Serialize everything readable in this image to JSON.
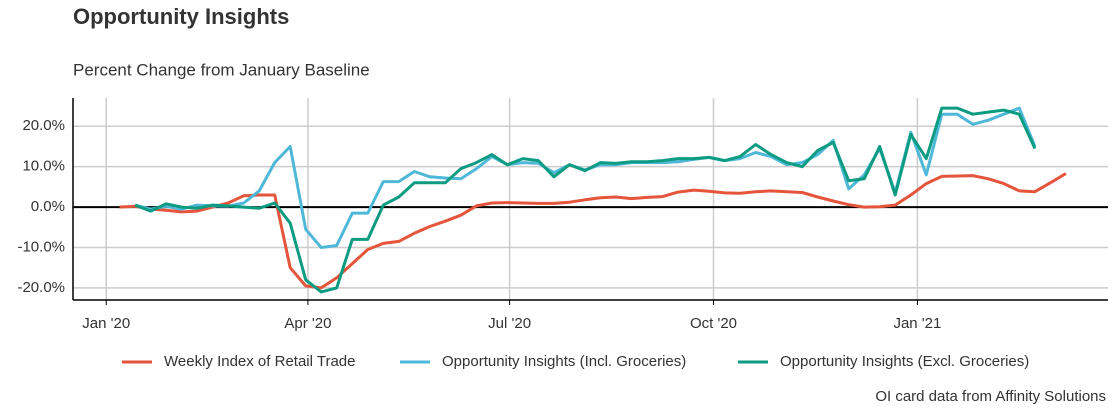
{
  "chart_data": {
    "type": "line",
    "title": "Opportunity Insights",
    "subtitle": "Percent Change from January Baseline",
    "caption": "OI card data from Affinity Solutions",
    "x": [
      6,
      13,
      20,
      27,
      34,
      41,
      48,
      55,
      62,
      69,
      76,
      83,
      90,
      97,
      104,
      111,
      118,
      125,
      132,
      139,
      146,
      153,
      160,
      167,
      174,
      181,
      188,
      195,
      202,
      209,
      216,
      223,
      230,
      237,
      244,
      251,
      258,
      265,
      272,
      279,
      286,
      293,
      300,
      307,
      314,
      321,
      328,
      335,
      342,
      349,
      356,
      363,
      370,
      377,
      384,
      391,
      398,
      405,
      412,
      419,
      426,
      433
    ],
    "xlim": [
      -15,
      452
    ],
    "xticks": [
      {
        "value": 0,
        "label": "Jan '20"
      },
      {
        "value": 91,
        "label": "Apr '20"
      },
      {
        "value": 182,
        "label": "Jul '20"
      },
      {
        "value": 274,
        "label": "Oct '20"
      },
      {
        "value": 366,
        "label": "Jan '21"
      }
    ],
    "ylim": [
      -23,
      27
    ],
    "yticks": [
      {
        "value": -20,
        "label": "-20.0%"
      },
      {
        "value": -10,
        "label": "-10.0%"
      },
      {
        "value": 0,
        "label": "0.0%"
      },
      {
        "value": 10,
        "label": "10.0%"
      },
      {
        "value": 20,
        "label": "20.0%"
      }
    ],
    "grid": true,
    "legend": "bottom",
    "series": [
      {
        "name": "Weekly Index of Retail Trade",
        "color": "#e4553b",
        "values": [
          0,
          0.2,
          -0.5,
          -0.8,
          -1.2,
          -1,
          0,
          1,
          2.8,
          3,
          3,
          -15,
          -19.5,
          -20,
          -17.5,
          -14,
          -10.5,
          -9,
          -8.5,
          -6.5,
          -4.8,
          -3.5,
          -2,
          0.3,
          1,
          1.1,
          1,
          0.9,
          0.9,
          1.2,
          1.8,
          2.3,
          2.5,
          2.1,
          2.4,
          2.6,
          3.7,
          4.2,
          3.9,
          3.5,
          3.4,
          3.8,
          4,
          3.8,
          3.6,
          2.5,
          1.5,
          0.6,
          0,
          0.1,
          0.5,
          3,
          5.8,
          7.6,
          7.7,
          7.8,
          7,
          5.8,
          4,
          3.8,
          6,
          8.3
        ]
      },
      {
        "name": "Opportunity Insights (Incl. Groceries)",
        "color": "#4fb8d8",
        "values": [
          null,
          0.5,
          -0.5,
          0.2,
          -0.5,
          0.5,
          0.3,
          0.2,
          1,
          4,
          11,
          15,
          -5.5,
          -10,
          -9.5,
          -1.5,
          -1.5,
          6.3,
          6.3,
          8.8,
          7.5,
          7.2,
          7,
          9.5,
          12.5,
          10.5,
          11,
          10.8,
          8.5,
          10.5,
          9.2,
          10.5,
          10.5,
          11,
          11,
          11,
          11.2,
          11.8,
          12.3,
          11.5,
          12,
          13.5,
          12.5,
          10.5,
          11,
          13,
          16.5,
          4.5,
          8,
          14.5,
          3.5,
          18.5,
          8,
          23,
          23,
          20.5,
          21.5,
          23,
          24.5,
          15,
          null,
          null
        ]
      },
      {
        "name": "Opportunity Insights (Excl. Groceries)",
        "color": "#0d9b82",
        "values": [
          null,
          0.5,
          -1,
          0.8,
          0,
          -0.3,
          0.5,
          0.3,
          0,
          -0.3,
          1,
          -4,
          -18,
          -21,
          -20,
          -8,
          -8,
          0.5,
          2.5,
          6,
          6,
          6,
          9.5,
          11,
          13,
          10.5,
          12,
          11.5,
          7.5,
          10.5,
          9,
          11,
          10.8,
          11.2,
          11.2,
          11.5,
          12,
          12,
          12.3,
          11.5,
          12.5,
          15.5,
          13,
          11,
          10,
          14,
          16,
          6.5,
          7,
          15,
          3,
          18,
          12,
          24.5,
          24.5,
          23,
          23.5,
          24,
          23,
          14.5,
          null,
          null
        ]
      }
    ]
  }
}
